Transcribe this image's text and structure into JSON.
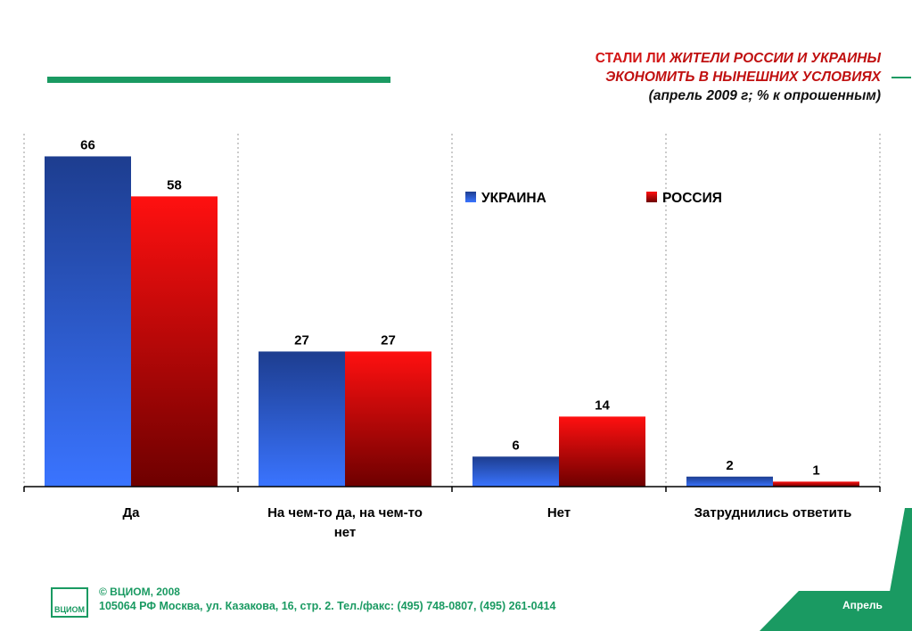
{
  "title": {
    "part1_red": "СТАЛИ ЛИ",
    "part1_rest": "ЖИТЕЛИ РОССИИ И УКРАИНЫ",
    "line2": "ЭКОНОМИТЬ В НЫНЕШНИХ УСЛОВИЯХ",
    "line3": "(апрель 2009 г; % к опрошенным)"
  },
  "footer": {
    "copyright": "© ВЦИОМ, 2008",
    "address": "105064 РФ Москва, ул. Казакова, 16, стр. 2.  Тел./факс: (495) 748-0807, (495) 261-0414",
    "logo_text": "ВЦИОМ",
    "month": "Апрель"
  },
  "colors": {
    "accent_green": "#1a9a62",
    "ukraine_blue": "#2f6af0",
    "russia_red": "#ff1010"
  },
  "chart_data": {
    "type": "bar",
    "categories": [
      "Да",
      "На чем-то да, на чем-то нет",
      "Нет",
      "Затруднились ответить"
    ],
    "series": [
      {
        "name": "УКРАИНА",
        "values": [
          66,
          27,
          6,
          2
        ]
      },
      {
        "name": "РОССИЯ",
        "values": [
          58,
          27,
          14,
          1
        ]
      }
    ],
    "ylim": [
      0,
      70
    ],
    "legend_position": "top-right",
    "grid": "vertical dotted separators"
  }
}
